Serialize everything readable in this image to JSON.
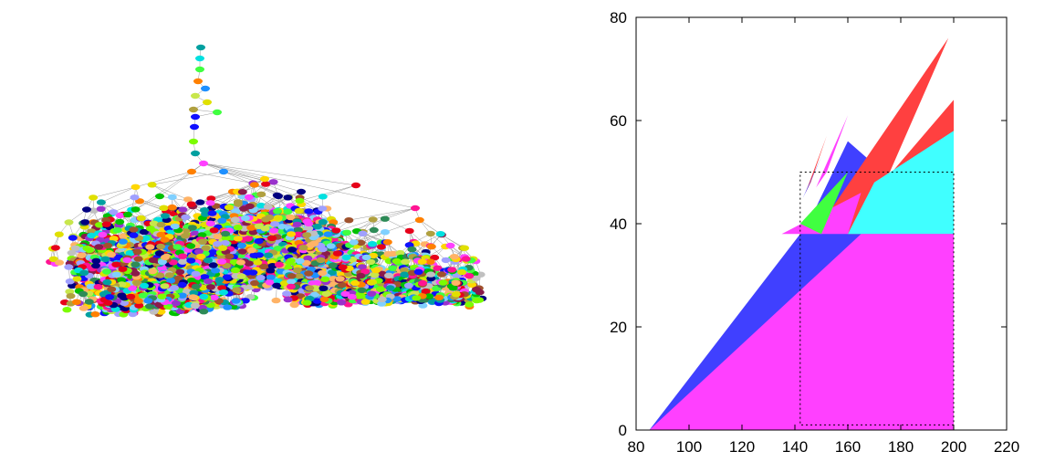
{
  "figure_left": {
    "kind": "tree",
    "node_colors": [
      "#e6001a",
      "#00c000",
      "#1010ff",
      "#00e0e0",
      "#e0e000",
      "#b0a040",
      "#ff40ff",
      "#00a0a0",
      "#40ff40",
      "#ff8000",
      "#a0a0ff",
      "#8b1a4a",
      "#000080",
      "#ffd700",
      "#c0c0c0",
      "#a0522d",
      "#9932cc",
      "#1e90ff",
      "#ff1493",
      "#7cfc00",
      "#c8e64c",
      "#ffb366",
      "#80d0ff",
      "#2e8b57"
    ]
  },
  "chart_data": {
    "type": "area",
    "xlim": [
      80,
      220
    ],
    "ylim": [
      0,
      80
    ],
    "x_ticks": [
      80,
      100,
      120,
      140,
      160,
      180,
      200,
      220
    ],
    "y_ticks": [
      0,
      20,
      40,
      60,
      80
    ],
    "x_tick_labels": [
      "80",
      "100",
      "120",
      "140",
      "160",
      "180",
      "200",
      "220"
    ],
    "y_tick_labels": [
      "0",
      "20",
      "40",
      "60",
      "80"
    ],
    "grid": false,
    "series": [
      {
        "color": "#4040ff",
        "polygon": [
          [
            85,
            0
          ],
          [
            200,
            0
          ],
          [
            200,
            38
          ],
          [
            160,
            56
          ],
          [
            145,
            40
          ]
        ]
      },
      {
        "color": "#ff4040",
        "polygon": [
          [
            150,
            40
          ],
          [
            198,
            76
          ],
          [
            175,
            49
          ],
          [
            200,
            64
          ],
          [
            200,
            38
          ],
          [
            160,
            38
          ]
        ]
      },
      {
        "color": "#40ffff",
        "polygon": [
          [
            160,
            38
          ],
          [
            200,
            38
          ],
          [
            200,
            58
          ],
          [
            170,
            48
          ]
        ]
      },
      {
        "color": "#ff40ff",
        "polygon": [
          [
            135,
            38
          ],
          [
            160,
            38
          ],
          [
            165,
            46
          ]
        ]
      },
      {
        "color": "#40ff40",
        "polygon": [
          [
            142,
            40
          ],
          [
            160,
            50
          ],
          [
            150,
            38
          ]
        ]
      },
      {
        "color": "#ff40ff",
        "polygon": [
          [
            148,
            47
          ],
          [
            160,
            61
          ],
          [
            152,
            50
          ]
        ]
      },
      {
        "color": "#ff4040",
        "polygon": [
          [
            144,
            46
          ],
          [
            152,
            57
          ],
          [
            146,
            48
          ]
        ]
      },
      {
        "color": "#4040ff",
        "polygon": [
          [
            143,
            45
          ],
          [
            150,
            53
          ],
          [
            145,
            47
          ]
        ]
      },
      {
        "color": "#40ff40",
        "polygon": [
          [
            145,
            47
          ],
          [
            149,
            51
          ],
          [
            146,
            48
          ]
        ]
      },
      {
        "color": "#ff40ff",
        "polygon": [
          [
            85,
            0
          ],
          [
            200,
            0
          ],
          [
            200,
            38
          ],
          [
            165,
            38
          ]
        ]
      }
    ],
    "dotted_box": {
      "x": [
        142,
        200
      ],
      "y": [
        1,
        50
      ],
      "color": "#000000"
    }
  }
}
